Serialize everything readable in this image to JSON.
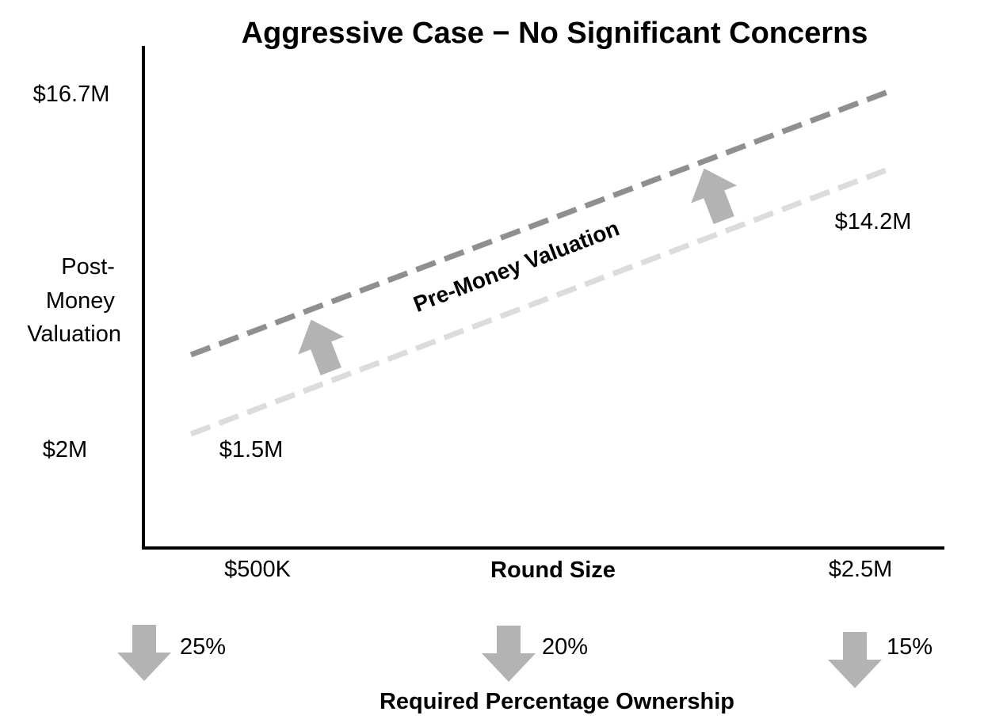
{
  "title": "Aggressive Case − No Significant Concerns",
  "y_axis": {
    "label_lines": [
      "Post-",
      "Money",
      "Valuation"
    ],
    "ticks": [
      "$16.7M",
      "$2M"
    ]
  },
  "x_axis": {
    "label": "Round Size",
    "ticks": [
      "$500K",
      "$2.5M"
    ]
  },
  "lines": {
    "post_money": {
      "color": "#8f8f8f",
      "style": "dashed"
    },
    "pre_money": {
      "color": "#dcdcdc",
      "style": "dashed"
    }
  },
  "annotations": {
    "pre_money_label": "Pre-Money Valuation",
    "pre_money_start": "$1.5M",
    "pre_money_end": "$14.2M",
    "arrow_color": "#b3b3b3"
  },
  "ownership": {
    "label": "Required Percentage Ownership",
    "items": [
      {
        "value": "25%",
        "icon": "down-arrow-icon"
      },
      {
        "value": "20%",
        "icon": "down-arrow-icon"
      },
      {
        "value": "15%",
        "icon": "down-arrow-icon"
      }
    ]
  }
}
